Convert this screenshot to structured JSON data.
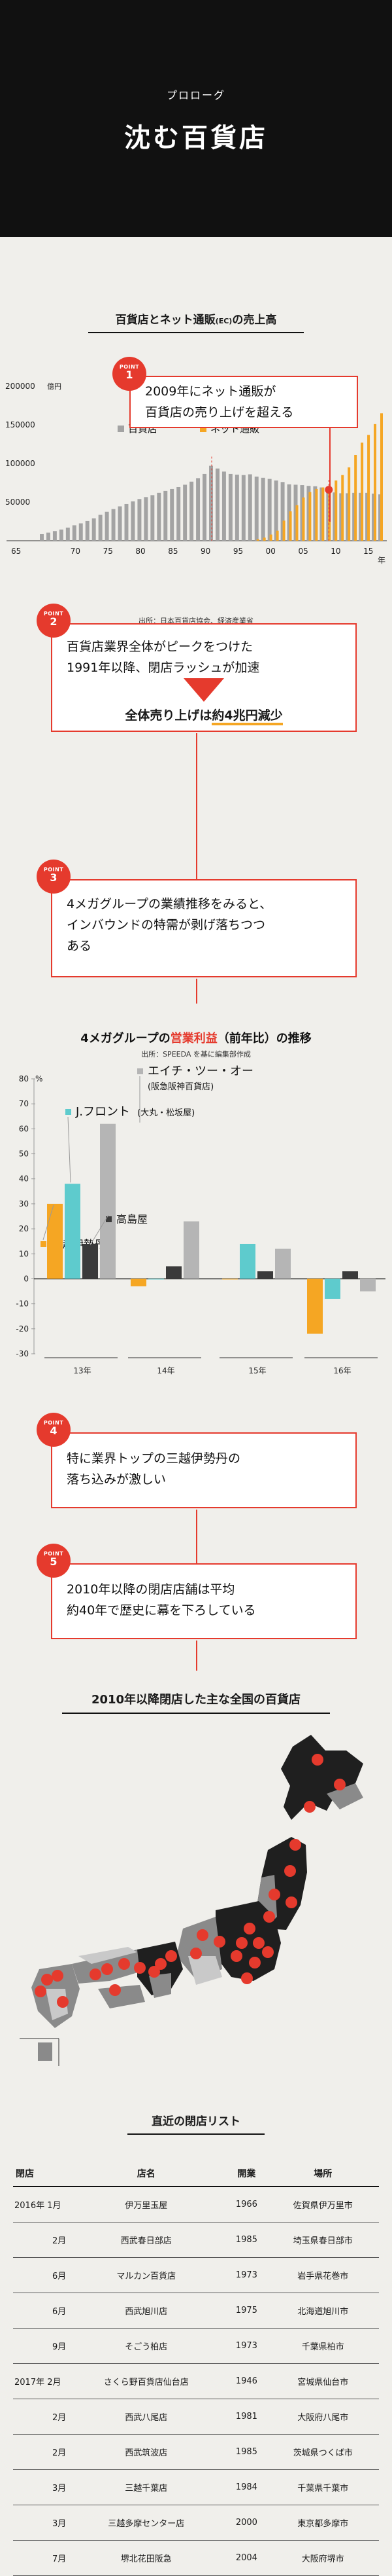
{
  "header": {
    "subtitle": "プロローグ",
    "title": "沈む百貨店"
  },
  "chart1": {
    "title_main": "百貨店とネット通販",
    "title_small": "(EC)",
    "title_end": "の売上高",
    "source": "出所：日本百貨店協会、経済産業省"
  },
  "chart_data": [
    {
      "type": "bar",
      "title": "百貨店とネット通販(EC)の売上高",
      "yunit": "億円",
      "ylim": [
        0,
        200000
      ],
      "yticks": [
        50000,
        100000,
        150000,
        200000
      ],
      "ytick_labels": [
        "50000",
        "100000",
        "150000",
        "200000"
      ],
      "xlabel": "年",
      "xticks": [
        "65",
        "70",
        "75",
        "80",
        "85",
        "90",
        "95",
        "00",
        "05",
        "10",
        "15"
      ],
      "x": [
        1965,
        1966,
        1967,
        1968,
        1969,
        1970,
        1971,
        1972,
        1973,
        1974,
        1975,
        1976,
        1977,
        1978,
        1979,
        1980,
        1981,
        1982,
        1983,
        1984,
        1985,
        1986,
        1987,
        1988,
        1989,
        1990,
        1991,
        1992,
        1993,
        1994,
        1995,
        1996,
        1997,
        1998,
        1999,
        2000,
        2001,
        2002,
        2003,
        2004,
        2005,
        2006,
        2007,
        2008,
        2009,
        2010,
        2011,
        2012,
        2013,
        2014,
        2015,
        2016,
        2017
      ],
      "series": [
        {
          "name": "百貨店",
          "color": "#a3a3a3",
          "values": [
            8500,
            10500,
            12500,
            14500,
            17000,
            20000,
            22500,
            25500,
            29000,
            33500,
            37500,
            41000,
            44500,
            47500,
            51000,
            54000,
            56500,
            59000,
            62000,
            64500,
            67000,
            69500,
            72500,
            76500,
            81000,
            86500,
            97000,
            93500,
            89500,
            86500,
            85500,
            85000,
            86000,
            83000,
            81500,
            80000,
            78000,
            76000,
            73000,
            72500,
            72000,
            71000,
            70500,
            69000,
            64800,
            62500,
            61500,
            61500,
            62000,
            62000,
            62000,
            61000,
            60000
          ]
        },
        {
          "name": "ネット通販",
          "color": "#f5a623",
          "x": [
            1998,
            1999,
            2000,
            2001,
            2002,
            2003,
            2004,
            2005,
            2006,
            2007,
            2008,
            2009,
            2010,
            2011,
            2012,
            2013,
            2014,
            2015,
            2016,
            2017
          ],
          "values": [
            2000,
            4000,
            8000,
            13000,
            26000,
            38000,
            46000,
            56000,
            63000,
            67000,
            69000,
            68000,
            78000,
            85000,
            95000,
            111000,
            127000,
            137000,
            151000,
            165000
          ]
        }
      ]
    },
    {
      "type": "bar",
      "title": "4メガグループの営業利益（前年比）の推移",
      "yunit": "%",
      "ylim": [
        -30,
        80
      ],
      "yticks": [
        -30,
        -20,
        -10,
        0,
        10,
        20,
        30,
        40,
        50,
        60,
        70,
        80
      ],
      "categories": [
        "13年",
        "14年",
        "15年",
        "16年"
      ],
      "series": [
        {
          "name": "三越伊勢丹",
          "color": "#f5a623",
          "values": [
            30,
            -3,
            0,
            -22
          ]
        },
        {
          "name": "J.フロント",
          "color": "#5ecbcd",
          "values": [
            38,
            0,
            14,
            -8
          ]
        },
        {
          "name": "高島屋",
          "color": "#3a3a3a",
          "values": [
            14,
            5,
            3,
            3
          ]
        },
        {
          "name": "エイチ・ツー・オー",
          "color": "#b5b5b5",
          "values": [
            62,
            23,
            12,
            -5
          ]
        }
      ]
    }
  ],
  "points": [
    {
      "label": "POINT",
      "num": "1",
      "lines": [
        "2009年にネット通販が",
        "百貨店の売り上げを超える"
      ]
    },
    {
      "label": "POINT",
      "num": "2",
      "lines": [
        "百貨店業界全体がピークをつけた",
        "1991年以降、閉店ラッシュが加速"
      ],
      "result_pre": "全体売り上げは",
      "result_emph": "約4兆円減少"
    },
    {
      "label": "POINT",
      "num": "3",
      "lines": [
        "4メガグループの業績推移をみると、",
        "インバウンドの特需が剥げ落ちつつ",
        "ある"
      ]
    },
    {
      "label": "POINT",
      "num": "4",
      "lines": [
        "特に業界トップの三越伊勢丹の",
        "落ち込みが激しい"
      ]
    },
    {
      "label": "POINT",
      "num": "5",
      "lines": [
        "2010年以降の閉店店舗は平均",
        "約40年で歴史に幕を下ろしている"
      ]
    }
  ],
  "chart2": {
    "title_pre": "4メガグループの",
    "title_mid": "営業利益",
    "title_post": "（前年比）の推移",
    "source": "出所：SPEEDA を基に編集部作成",
    "legend": {
      "h2o": "エイチ・ツー・オー",
      "h2o_sub": "(阪急阪神百貨店)",
      "jfront": "J.フロント",
      "jfront_sub": "(大丸・松坂屋)",
      "takashimaya": "高島屋",
      "mitsukoshi": "三越伊勢丹"
    }
  },
  "map": {
    "title": "2010年以降閉店した主な全国の百貨店",
    "colors": {
      "land_dark": "#1f1f1f",
      "land_mid": "#8a8a8a",
      "land_light": "#c9c9c9",
      "pin": "#e53a2d"
    }
  },
  "table": {
    "title": "直近の閉店リスト",
    "headers": [
      "閉店",
      "店名",
      "開業",
      "場所"
    ],
    "rows": [
      {
        "date": "2016年 1月",
        "name": "伊万里玉屋",
        "open": "1966",
        "place": "佐賀県伊万里市",
        "indent": false
      },
      {
        "date": "2月",
        "name": "西武春日部店",
        "open": "1985",
        "place": "埼玉県春日部市",
        "indent": true
      },
      {
        "date": "6月",
        "name": "マルカン百貨店",
        "open": "1973",
        "place": "岩手県花巻市",
        "indent": true
      },
      {
        "date": "6月",
        "name": "西武旭川店",
        "open": "1975",
        "place": "北海道旭川市",
        "indent": true
      },
      {
        "date": "9月",
        "name": "そごう柏店",
        "open": "1973",
        "place": "千葉県柏市",
        "indent": true
      },
      {
        "date": "2017年 2月",
        "name": "さくら野百貨店仙台店",
        "open": "1946",
        "place": "宮城県仙台市",
        "indent": false
      },
      {
        "date": "2月",
        "name": "西武八尾店",
        "open": "1981",
        "place": "大阪府八尾市",
        "indent": true
      },
      {
        "date": "2月",
        "name": "西武筑波店",
        "open": "1985",
        "place": "茨城県つくば市",
        "indent": true
      },
      {
        "date": "3月",
        "name": "三越千葉店",
        "open": "1984",
        "place": "千葉県千葉市",
        "indent": true
      },
      {
        "date": "3月",
        "name": "三越多摩センター店",
        "open": "2000",
        "place": "東京都多摩市",
        "indent": true
      },
      {
        "date": "7月",
        "name": "堺北花田阪急",
        "open": "2004",
        "place": "大阪府堺市",
        "indent": true
      }
    ]
  }
}
